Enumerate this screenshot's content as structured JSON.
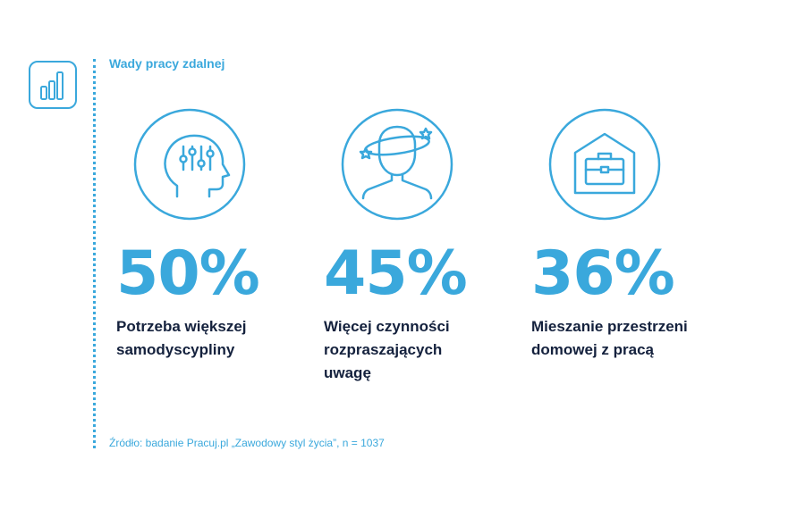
{
  "header": {
    "title": "Wady pracy zdalnej",
    "logo_icon": "bar-chart-icon"
  },
  "chart_data": {
    "type": "table",
    "title": "Wady pracy zdalnej",
    "unit": "%",
    "items": [
      {
        "value": 50,
        "display": "50%",
        "label": "Potrzeba większej samodyscypliny",
        "icon": "head-sliders-icon"
      },
      {
        "value": 45,
        "display": "45%",
        "label": "Więcej czynności rozpraszających uwagę",
        "icon": "dizzy-person-icon"
      },
      {
        "value": 36,
        "display": "36%",
        "label": "Mieszanie przestrzeni domowej z pracą",
        "icon": "house-briefcase-icon"
      }
    ]
  },
  "footer": {
    "source": "Źródło: badanie Pracuj.pl „Zawodowy styl życia”, n = 1037"
  },
  "colors": {
    "accent": "#3aa8dc",
    "text_dark": "#14213d",
    "background": "#ffffff"
  }
}
